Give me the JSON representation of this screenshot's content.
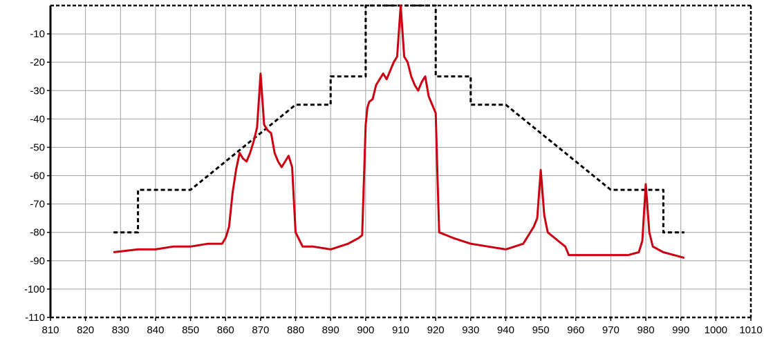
{
  "chart_data": {
    "type": "line",
    "title": "",
    "xlabel": "",
    "ylabel": "",
    "xlim": [
      810,
      1010
    ],
    "ylim": [
      -110,
      0
    ],
    "x_ticks": [
      810,
      820,
      830,
      840,
      850,
      860,
      870,
      880,
      890,
      900,
      910,
      920,
      930,
      940,
      950,
      960,
      970,
      980,
      990,
      1000,
      1010
    ],
    "x_tick_labels": [
      "810",
      "820",
      "830",
      "840",
      "850",
      "860",
      "870",
      "880",
      "890",
      "900",
      "910",
      "920",
      "930",
      "940",
      "950",
      "960",
      "970",
      "980",
      "990",
      "1000",
      "1010"
    ],
    "y_ticks": [
      -10,
      -20,
      -30,
      -40,
      -50,
      -60,
      -70,
      -80,
      -90,
      -100,
      -110
    ],
    "y_tick_labels": [
      "-10",
      "-20",
      "-30",
      "-40",
      "-50",
      "-60",
      "-70",
      "-80",
      "-90",
      "-100",
      "-110"
    ],
    "grid": true,
    "legend": "none",
    "series": [
      {
        "style": "dashed",
        "color": "#000000",
        "x": [
          828,
          835,
          835,
          850,
          880,
          890,
          890,
          900,
          900,
          920,
          920,
          930,
          930,
          940,
          970,
          985,
          985,
          991
        ],
        "y": [
          -80,
          -80,
          -65,
          -65,
          -35,
          -35,
          -25,
          -25,
          0,
          0,
          -25,
          -25,
          -35,
          -35,
          -65,
          -65,
          -80,
          -80
        ]
      },
      {
        "style": "solid",
        "color": "#cc0011",
        "x": [
          828,
          835,
          840,
          845,
          850,
          855,
          859,
          860,
          861,
          862,
          863,
          864,
          865,
          866,
          867,
          868,
          869,
          870,
          871,
          872,
          873,
          874,
          875,
          876,
          877,
          878,
          879,
          880,
          882,
          885,
          890,
          895,
          898,
          899,
          900,
          900.5,
          901,
          902,
          903,
          904,
          905,
          906,
          907,
          908,
          909,
          910,
          911,
          912,
          913,
          914,
          915,
          916,
          917,
          918,
          919,
          920,
          920.5,
          921,
          925,
          930,
          935,
          940,
          945,
          948,
          949,
          950,
          951,
          952,
          955,
          957,
          958,
          960,
          965,
          970,
          975,
          978,
          979,
          980,
          981,
          982,
          985,
          988,
          991
        ],
        "y": [
          -87,
          -86,
          -86,
          -85,
          -85,
          -84,
          -84,
          -82,
          -78,
          -66,
          -58,
          -52,
          -54,
          -55,
          -52,
          -48,
          -43,
          -24,
          -42,
          -44,
          -45,
          -52,
          -55,
          -57,
          -55,
          -53,
          -57,
          -80,
          -85,
          -85,
          -86,
          -84,
          -82,
          -81,
          -42,
          -36,
          -34,
          -33,
          -28,
          -26,
          -24,
          -26,
          -23,
          -20,
          -18,
          0,
          -18,
          -20,
          -25,
          -28,
          -30,
          -27,
          -25,
          -32,
          -35,
          -38,
          -60,
          -80,
          -82,
          -84,
          -85,
          -86,
          -84,
          -78,
          -75,
          -58,
          -74,
          -80,
          -83,
          -85,
          -88,
          -88,
          -88,
          -88,
          -88,
          -87,
          -83,
          -63,
          -80,
          -85,
          -87,
          -88,
          -89
        ]
      }
    ]
  }
}
